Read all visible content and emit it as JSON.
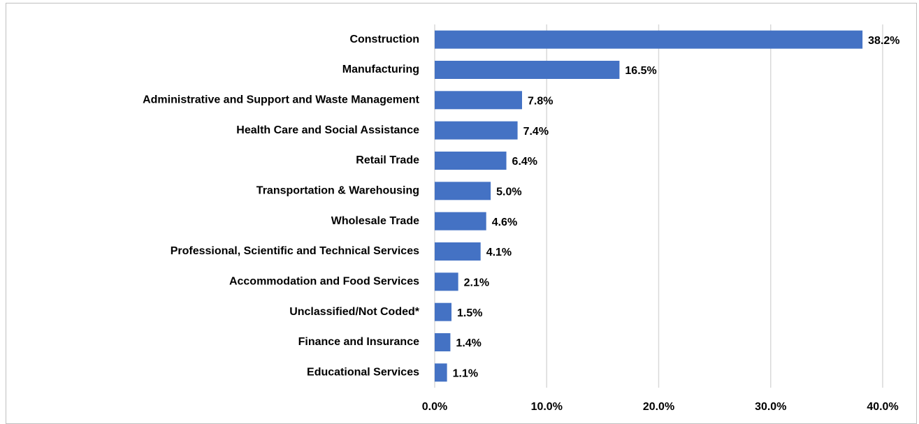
{
  "chart_data": {
    "type": "bar",
    "orientation": "horizontal",
    "categories": [
      "Construction",
      "Manufacturing",
      "Administrative and Support and Waste Management",
      "Health Care and Social Assistance",
      "Retail Trade",
      "Transportation & Warehousing",
      "Wholesale Trade",
      "Professional, Scientific and Technical Services",
      "Accommodation and Food Services",
      "Unclassified/Not Coded*",
      "Finance and Insurance",
      "Educational Services"
    ],
    "values": [
      38.2,
      16.5,
      7.8,
      7.4,
      6.4,
      5.0,
      4.6,
      4.1,
      2.1,
      1.5,
      1.4,
      1.1
    ],
    "value_labels": [
      "38.2%",
      "16.5%",
      "7.8%",
      "7.4%",
      "6.4%",
      "5.0%",
      "4.6%",
      "4.1%",
      "2.1%",
      "1.5%",
      "1.4%",
      "1.1%"
    ],
    "color": "#4472c4",
    "xlim": [
      0,
      40
    ],
    "xticks": [
      {
        "value": 0,
        "label": "0.0%"
      },
      {
        "value": 10,
        "label": "10.0%"
      },
      {
        "value": 20,
        "label": "20.0%"
      },
      {
        "value": 30,
        "label": "30.0%"
      },
      {
        "value": 40,
        "label": "40.0%"
      }
    ],
    "grid": true
  }
}
